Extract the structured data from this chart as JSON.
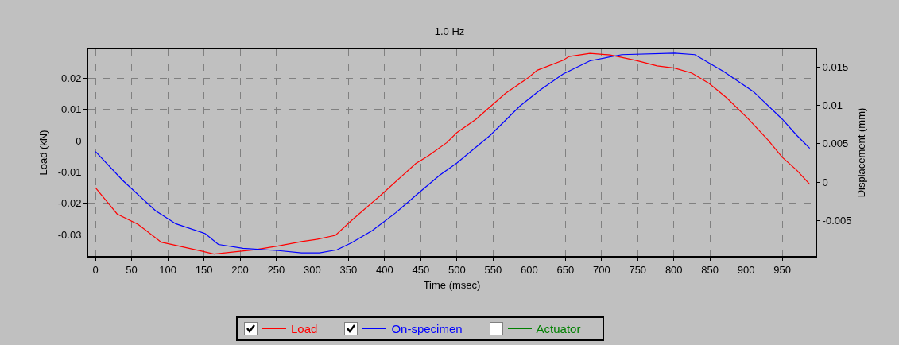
{
  "chart_data": {
    "type": "line",
    "title": "1.0 Hz",
    "xlabel": "Time (msec)",
    "ylabel": "Load (kN)",
    "y2label": "Displacement (mm)",
    "xlim": [
      -10,
      996
    ],
    "xticks": [
      0,
      50,
      100,
      150,
      200,
      250,
      300,
      350,
      400,
      450,
      500,
      550,
      600,
      650,
      700,
      750,
      800,
      850,
      900,
      950
    ],
    "ylim": [
      -0.0368,
      0.0292
    ],
    "yticks": [
      -0.03,
      -0.02,
      -0.01,
      0,
      0.01,
      0.02
    ],
    "y2lim": [
      -0.0096,
      0.0173
    ],
    "y2ticks": [
      -0.005,
      0,
      0.005,
      0.01,
      0.015
    ],
    "grid": true,
    "legend": "bottom",
    "line_style": "solid",
    "marker": "none",
    "series": [
      {
        "name": "Load",
        "color": "#ff0000",
        "x": [
          0,
          30,
          59,
          91,
          111,
          148,
          164,
          192,
          221,
          253,
          285,
          306,
          332,
          354,
          395,
          443,
          460,
          486,
          500,
          526,
          567,
          599,
          611,
          647,
          655,
          684,
          712,
          748,
          777,
          801,
          825,
          849,
          873,
          902,
          930,
          950,
          970,
          988
        ],
        "values": [
          -0.015,
          -0.0234,
          -0.0267,
          -0.0324,
          -0.0334,
          -0.0353,
          -0.0362,
          -0.0355,
          -0.0348,
          -0.0336,
          -0.0322,
          -0.0315,
          -0.0302,
          -0.0255,
          -0.0173,
          -0.0073,
          -0.0049,
          -0.0006,
          0.0026,
          0.0068,
          0.0151,
          0.0202,
          0.0225,
          0.0257,
          0.0269,
          0.0279,
          0.0274,
          0.0256,
          0.0239,
          0.0232,
          0.0216,
          0.0183,
          0.0137,
          0.0072,
          0.0003,
          -0.0053,
          -0.0094,
          -0.0139
        ]
      },
      {
        "name": "On-specimen",
        "color": "#0000ff",
        "axis": "y2",
        "x": [
          0,
          38,
          83,
          111,
          152,
          170,
          204,
          253,
          285,
          310,
          334,
          354,
          383,
          415,
          447,
          476,
          500,
          546,
          587,
          615,
          647,
          684,
          728,
          801,
          829,
          869,
          910,
          950,
          970,
          988
        ],
        "values": [
          0.004,
          0.0002,
          -0.0037,
          -0.0054,
          -0.0067,
          -0.0081,
          -0.0086,
          -0.0089,
          -0.0092,
          -0.0092,
          -0.0088,
          -0.0079,
          -0.0063,
          -0.004,
          -0.0014,
          0.0009,
          0.0025,
          0.0061,
          0.0099,
          0.012,
          0.0141,
          0.0158,
          0.0166,
          0.0168,
          0.0166,
          0.0144,
          0.0118,
          0.0082,
          0.0061,
          0.0044
        ]
      },
      {
        "name": "Actuator",
        "color": "#008000"
      }
    ]
  }
}
